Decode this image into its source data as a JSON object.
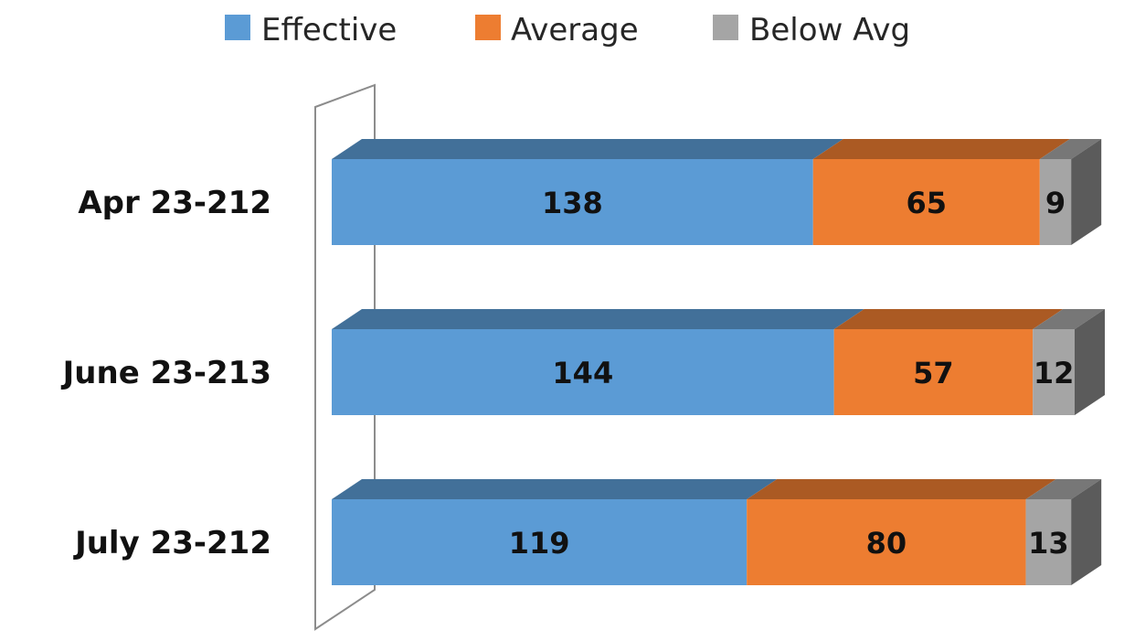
{
  "chart_data": {
    "type": "bar",
    "orientation": "horizontal",
    "stacked": true,
    "style": "3d",
    "title": "",
    "xlabel": "",
    "ylabel": "",
    "grid": false,
    "legend_position": "top",
    "categories": [
      "Apr 23-212",
      "June 23-213",
      "July 23-212"
    ],
    "series": [
      {
        "name": "Effective",
        "values": [
          138,
          144,
          119
        ],
        "color": "#5B9BD5"
      },
      {
        "name": "Average",
        "values": [
          65,
          57,
          80
        ],
        "color": "#ED7D31"
      },
      {
        "name": "Below Avg",
        "values": [
          9,
          12,
          13
        ],
        "color": "#A5A5A5"
      }
    ]
  }
}
